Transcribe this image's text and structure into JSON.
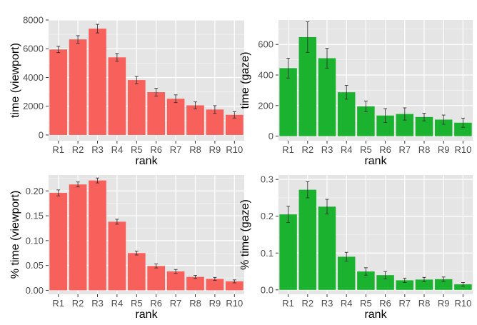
{
  "colors": {
    "red_bar": "#f8605c",
    "green_bar": "#1ab22e",
    "panel_bg": "#e5e5e5",
    "grid": "#ffffff",
    "text": "#4d4d4d",
    "error_bar": "#333333"
  },
  "chart_data": [
    {
      "type": "bar",
      "categories": [
        "R1",
        "R2",
        "R3",
        "R4",
        "R5",
        "R6",
        "R7",
        "R8",
        "R9",
        "R10"
      ],
      "values": [
        5950,
        6650,
        7400,
        5400,
        3820,
        2980,
        2520,
        2060,
        1770,
        1400
      ],
      "errors": [
        220,
        260,
        300,
        270,
        250,
        270,
        270,
        240,
        270,
        220
      ],
      "xlabel": "rank",
      "ylabel": "time (viewport)",
      "ylim": [
        -400,
        8000
      ],
      "yticks": [
        0,
        2000,
        4000,
        6000,
        8000
      ],
      "ytick_labels": [
        "0",
        "2000",
        "4000",
        "6000",
        "8000"
      ],
      "color": "#f8605c",
      "grid": true
    },
    {
      "type": "bar",
      "categories": [
        "R1",
        "R2",
        "R3",
        "R4",
        "R5",
        "R6",
        "R7",
        "R8",
        "R9",
        "R10"
      ],
      "values": [
        445,
        648,
        510,
        287,
        195,
        135,
        145,
        125,
        108,
        88
      ],
      "errors": [
        65,
        100,
        65,
        45,
        35,
        45,
        40,
        25,
        30,
        30
      ],
      "xlabel": "rank",
      "ylabel": "time (gaze)",
      "ylim": [
        -30,
        760
      ],
      "yticks": [
        0,
        200,
        400,
        600
      ],
      "ytick_labels": [
        "0",
        "200",
        "400",
        "600"
      ],
      "color": "#1ab22e",
      "grid": true
    },
    {
      "type": "bar",
      "categories": [
        "R1",
        "R2",
        "R3",
        "R4",
        "R5",
        "R6",
        "R7",
        "R8",
        "R9",
        "R10"
      ],
      "values": [
        0.196,
        0.213,
        0.221,
        0.138,
        0.075,
        0.049,
        0.038,
        0.027,
        0.023,
        0.018
      ],
      "errors": [
        0.006,
        0.005,
        0.005,
        0.005,
        0.004,
        0.004,
        0.004,
        0.003,
        0.003,
        0.003
      ],
      "xlabel": "rank",
      "ylabel": "% time (viewport)",
      "ylim": [
        -0.008,
        0.232
      ],
      "yticks": [
        0.0,
        0.05,
        0.1,
        0.15,
        0.2
      ],
      "ytick_labels": [
        "0.00",
        "0.05",
        "0.10",
        "0.15",
        "0.20"
      ],
      "color": "#f8605c",
      "grid": true
    },
    {
      "type": "bar",
      "categories": [
        "R1",
        "R2",
        "R3",
        "R4",
        "R5",
        "R6",
        "R7",
        "R8",
        "R9",
        "R10"
      ],
      "values": [
        0.205,
        0.272,
        0.226,
        0.09,
        0.05,
        0.04,
        0.026,
        0.028,
        0.029,
        0.015
      ],
      "errors": [
        0.022,
        0.022,
        0.02,
        0.012,
        0.01,
        0.01,
        0.006,
        0.006,
        0.006,
        0.005
      ],
      "xlabel": "rank",
      "ylabel": "% time (gaze)",
      "ylim": [
        -0.012,
        0.312
      ],
      "yticks": [
        0.0,
        0.1,
        0.2,
        0.3
      ],
      "ytick_labels": [
        "0.0",
        "0.1",
        "0.2",
        "0.3"
      ],
      "color": "#1ab22e",
      "grid": true
    }
  ]
}
